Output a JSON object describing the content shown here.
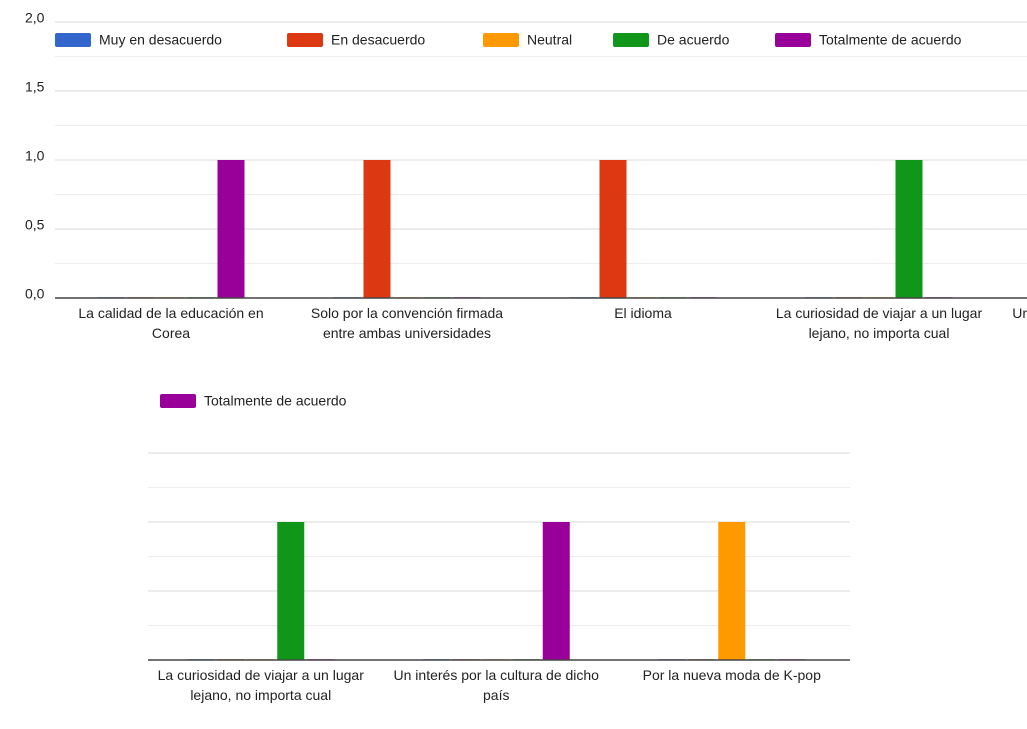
{
  "chart_data": [
    {
      "type": "bar",
      "categories": [
        "La calidad de la educación en Corea",
        "Solo por la convención firmada entre ambas universidades",
        "El idioma",
        "La curiosidad de viajar a un lugar lejano, no importa cual",
        "Ur"
      ],
      "series": [
        {
          "name": "Muy en desacuerdo",
          "color": "#3366cc",
          "values": [
            0,
            0,
            0,
            0,
            null
          ]
        },
        {
          "name": "En desacuerdo",
          "color": "#dc3912",
          "values": [
            0,
            1,
            1,
            0,
            null
          ]
        },
        {
          "name": "Neutral",
          "color": "#ff9900",
          "values": [
            0,
            0,
            0,
            0,
            null
          ]
        },
        {
          "name": "De acuerdo",
          "color": "#109618",
          "values": [
            0,
            0,
            0,
            1,
            null
          ]
        },
        {
          "name": "Totalmente de acuerdo",
          "color": "#990099",
          "values": [
            1,
            0,
            0,
            0,
            null
          ]
        }
      ],
      "ylim": [
        0,
        2
      ],
      "yticks": [
        {
          "value": 0,
          "label": "0,0"
        },
        {
          "value": 0.5,
          "label": "0,5"
        },
        {
          "value": 1,
          "label": "1,0"
        },
        {
          "value": 1.5,
          "label": "1,5"
        },
        {
          "value": 2,
          "label": "2,0"
        }
      ],
      "grid": true,
      "minor_grid": true,
      "legend": "top"
    },
    {
      "type": "bar",
      "categories": [
        "La curiosidad de viajar a un lugar lejano, no importa cual",
        "Un interés por la cultura de dicho país",
        "Por la nueva moda de K-pop"
      ],
      "series": [
        {
          "color": "#3366cc",
          "values": [
            0,
            0,
            0
          ]
        },
        {
          "color": "#dc3912",
          "values": [
            0,
            0,
            0
          ]
        },
        {
          "color": "#ff9900",
          "values": [
            0,
            0,
            1
          ]
        },
        {
          "color": "#109618",
          "values": [
            1,
            0,
            0
          ]
        },
        {
          "name": "Totalmente de acuerdo",
          "color": "#990099",
          "values": [
            0,
            1,
            0
          ]
        }
      ],
      "ylim": [
        0,
        2
      ],
      "yticks": [
        0,
        0.5,
        1,
        1.5
      ],
      "grid": true,
      "minor_grid": true,
      "legend": "top"
    }
  ]
}
